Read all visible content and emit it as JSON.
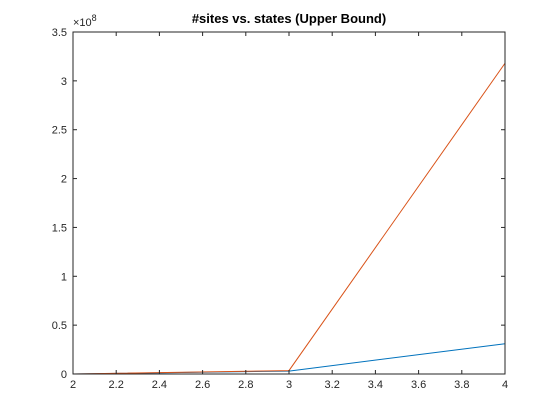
{
  "chart_data": {
    "type": "line",
    "title": "#sites vs. states (Upper Bound)",
    "xlabel": "",
    "ylabel": "",
    "xlim": [
      2,
      4
    ],
    "ylim": [
      0,
      350000000
    ],
    "x_ticks": [
      2,
      2.2,
      2.4,
      2.6,
      2.8,
      3,
      3.2,
      3.4,
      3.6,
      3.8,
      4
    ],
    "x_tick_labels": [
      "2",
      "2.2",
      "2.4",
      "2.6",
      "2.8",
      "3",
      "3.2",
      "3.4",
      "3.6",
      "3.8",
      "4"
    ],
    "y_ticks": [
      0,
      50000000,
      100000000,
      150000000,
      200000000,
      250000000,
      300000000,
      350000000
    ],
    "y_tick_labels": [
      "0",
      "0.5",
      "1",
      "1.5",
      "2",
      "2.5",
      "3",
      "3.5"
    ],
    "y_exponent_base": "×10",
    "y_exponent_power": "8",
    "grid": false,
    "x": [
      2,
      3,
      4
    ],
    "series": [
      {
        "values": [
          0,
          3000000,
          31000000
        ],
        "color": "#0072BD"
      },
      {
        "values": [
          0,
          3500000,
          318000000
        ],
        "color": "#D95319"
      }
    ]
  }
}
